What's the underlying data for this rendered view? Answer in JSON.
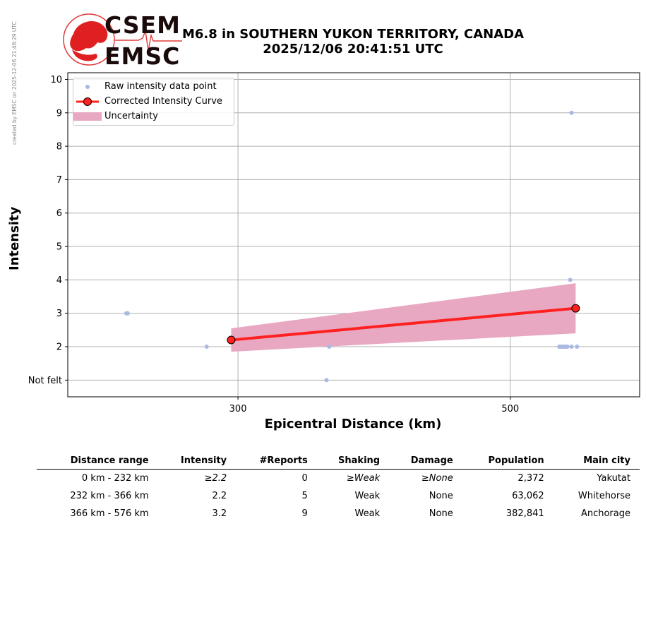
{
  "watermark": "created by EMSC on 2025-12-06 21:48:29 UTC",
  "logo": {
    "word1": "CSEM",
    "word2": "EMSC"
  },
  "chart_data": {
    "type": "line",
    "title": [
      "M6.8 in SOUTHERN YUKON TERRITORY, CANADA",
      "2025/12/06 20:41:51 UTC"
    ],
    "xlabel": "Epicentral Distance (km)",
    "ylabel": "Intensity",
    "xlim": [
      175,
      595
    ],
    "ylim": [
      0.5,
      10.2
    ],
    "xticks": [
      300,
      500
    ],
    "yticks": [
      {
        "v": 1,
        "label": "Not felt"
      },
      {
        "v": 2,
        "label": "2"
      },
      {
        "v": 3,
        "label": "3"
      },
      {
        "v": 4,
        "label": "4"
      },
      {
        "v": 5,
        "label": "5"
      },
      {
        "v": 6,
        "label": "6"
      },
      {
        "v": 7,
        "label": "7"
      },
      {
        "v": 8,
        "label": "8"
      },
      {
        "v": 9,
        "label": "9"
      },
      {
        "v": 10,
        "label": "10"
      }
    ],
    "grid": true,
    "legend_position": "top-left",
    "legend": [
      "Raw intensity data point",
      "Corrected Intensity Curve",
      "Uncertainty"
    ],
    "colors": {
      "raw": "#aab9e2",
      "curve": "#ff2020",
      "marker_edge": "#000000",
      "uncertainty": "#e8a8c2",
      "grid": "#b0b0b0"
    },
    "series": [
      {
        "name": "Raw intensity data point",
        "points": [
          [
            218,
            3
          ],
          [
            219,
            3
          ],
          [
            277,
            2
          ],
          [
            367,
            2
          ],
          [
            365,
            1
          ],
          [
            545,
            9
          ],
          [
            544,
            4
          ],
          [
            536,
            2
          ],
          [
            537,
            2
          ],
          [
            538,
            2
          ],
          [
            539,
            2
          ],
          [
            540,
            2
          ],
          [
            541,
            2
          ],
          [
            542,
            2
          ],
          [
            545,
            2
          ],
          [
            549,
            2
          ]
        ]
      },
      {
        "name": "Corrected Intensity Curve",
        "points": [
          [
            295,
            2.2
          ],
          [
            548,
            3.15
          ]
        ]
      },
      {
        "name": "Uncertainty",
        "band": {
          "x": [
            295,
            548
          ],
          "upper": [
            2.55,
            3.9
          ],
          "lower": [
            1.85,
            2.4
          ]
        }
      }
    ]
  },
  "table": {
    "headers": [
      "Distance range",
      "Intensity",
      "#Reports",
      "Shaking",
      "Damage",
      "Population",
      "Main city"
    ],
    "rows": [
      [
        "0 km -  232 km",
        "≥2.2",
        "0",
        "≥Weak",
        "≥None",
        "2,372",
        "Yakutat"
      ],
      [
        "232 km -  366 km",
        "2.2",
        "5",
        "Weak",
        "None",
        "63,062",
        "Whitehorse"
      ],
      [
        "366 km -  576 km",
        "3.2",
        "9",
        "Weak",
        "None",
        "382,841",
        "Anchorage"
      ]
    ],
    "italic_row": 0,
    "italic_cols": [
      1,
      3,
      4
    ]
  }
}
